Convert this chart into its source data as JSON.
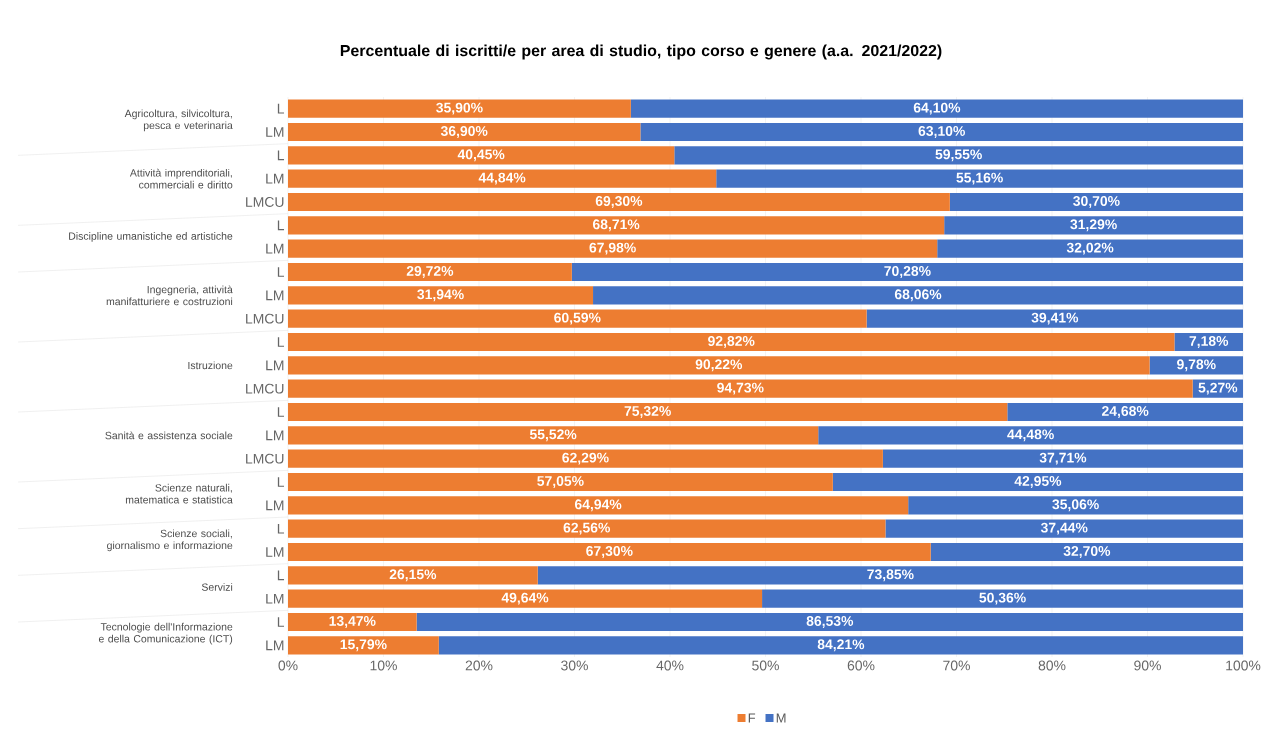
{
  "chart_data": {
    "type": "bar",
    "orientation": "horizontal",
    "stacked": true,
    "title": "Percentuale di iscritti/e per area di studio, tipo corso e genere (a.a. 2021/2022)",
    "categories": [
      "L",
      "LM",
      "L",
      "LM",
      "LMCU",
      "L",
      "LM",
      "L",
      "LM",
      "LMCU",
      "L",
      "LM",
      "LMCU",
      "L",
      "LM",
      "LMCU",
      "L",
      "LM",
      "L",
      "LM",
      "L",
      "LM",
      "L",
      "LM"
    ],
    "annotations": [
      "Agricoltura, silvicoltura, pesca e veterinaria",
      "Attività imprenditoriali, commerciali e diritto",
      "Discipline umanistiche ed artistiche",
      "Ingegneria, attività manifatturiere e costruzioni",
      "Istruzione",
      "Sanità e assistenza sociale",
      "Scienze naturali, matematica e statistica",
      "Scienze sociali, giornalismo e informazione",
      "Servizi",
      "Tecnologie dell'Informazione e della Comunicazione (ICT)"
    ],
    "series": [
      {
        "name": "F",
        "color": "#ed7d31",
        "values": [
          35.9,
          36.9,
          40.45,
          44.84,
          69.3,
          68.71,
          67.98,
          29.72,
          31.94,
          60.59,
          92.82,
          90.22,
          94.73,
          75.32,
          55.52,
          62.29,
          57.05,
          64.94,
          62.56,
          67.3,
          26.15,
          49.64,
          13.47,
          15.79
        ],
        "value_labels": [
          "35,90%",
          "36,90%",
          "40,45%",
          "44,84%",
          "69,30%",
          "68,71%",
          "67,98%",
          "29,72%",
          "31,94%",
          "60,59%",
          "92,82%",
          "90,22%",
          "94,73%",
          "75,32%",
          "55,52%",
          "62,29%",
          "57,05%",
          "64,94%",
          "62,56%",
          "67,30%",
          "26,15%",
          "49,64%",
          "13,47%",
          "15,79%"
        ]
      },
      {
        "name": "M",
        "color": "#4472c4",
        "values": [
          64.1,
          63.1,
          59.55,
          55.16,
          30.7,
          31.29,
          32.02,
          70.28,
          68.06,
          39.41,
          7.18,
          9.78,
          5.27,
          24.68,
          44.48,
          37.71,
          42.95,
          35.06,
          37.44,
          32.7,
          73.85,
          50.36,
          86.53,
          84.21
        ],
        "value_labels": [
          "64,10%",
          "63,10%",
          "59,55%",
          "55,16%",
          "30,70%",
          "31,29%",
          "32,02%",
          "70,28%",
          "68,06%",
          "39,41%",
          "7,18%",
          "9,78%",
          "5,27%",
          "24,68%",
          "44,48%",
          "37,71%",
          "42,95%",
          "35,06%",
          "37,44%",
          "32,70%",
          "73,85%",
          "50,36%",
          "86,53%",
          "84,21%"
        ]
      }
    ],
    "xlim": [
      0,
      100
    ],
    "xticks": [
      {
        "value": 0,
        "label": "0%"
      },
      {
        "value": 10,
        "label": "10%"
      },
      {
        "value": 20,
        "label": "20%"
      },
      {
        "value": 30,
        "label": "30%"
      },
      {
        "value": 40,
        "label": "40%"
      },
      {
        "value": 50,
        "label": "50%"
      },
      {
        "value": 60,
        "label": "60%"
      },
      {
        "value": 70,
        "label": "70%"
      },
      {
        "value": 80,
        "label": "80%"
      },
      {
        "value": 90,
        "label": "90%"
      },
      {
        "value": 100,
        "label": "100%"
      }
    ],
    "grid": "x",
    "legend": "bottom"
  }
}
